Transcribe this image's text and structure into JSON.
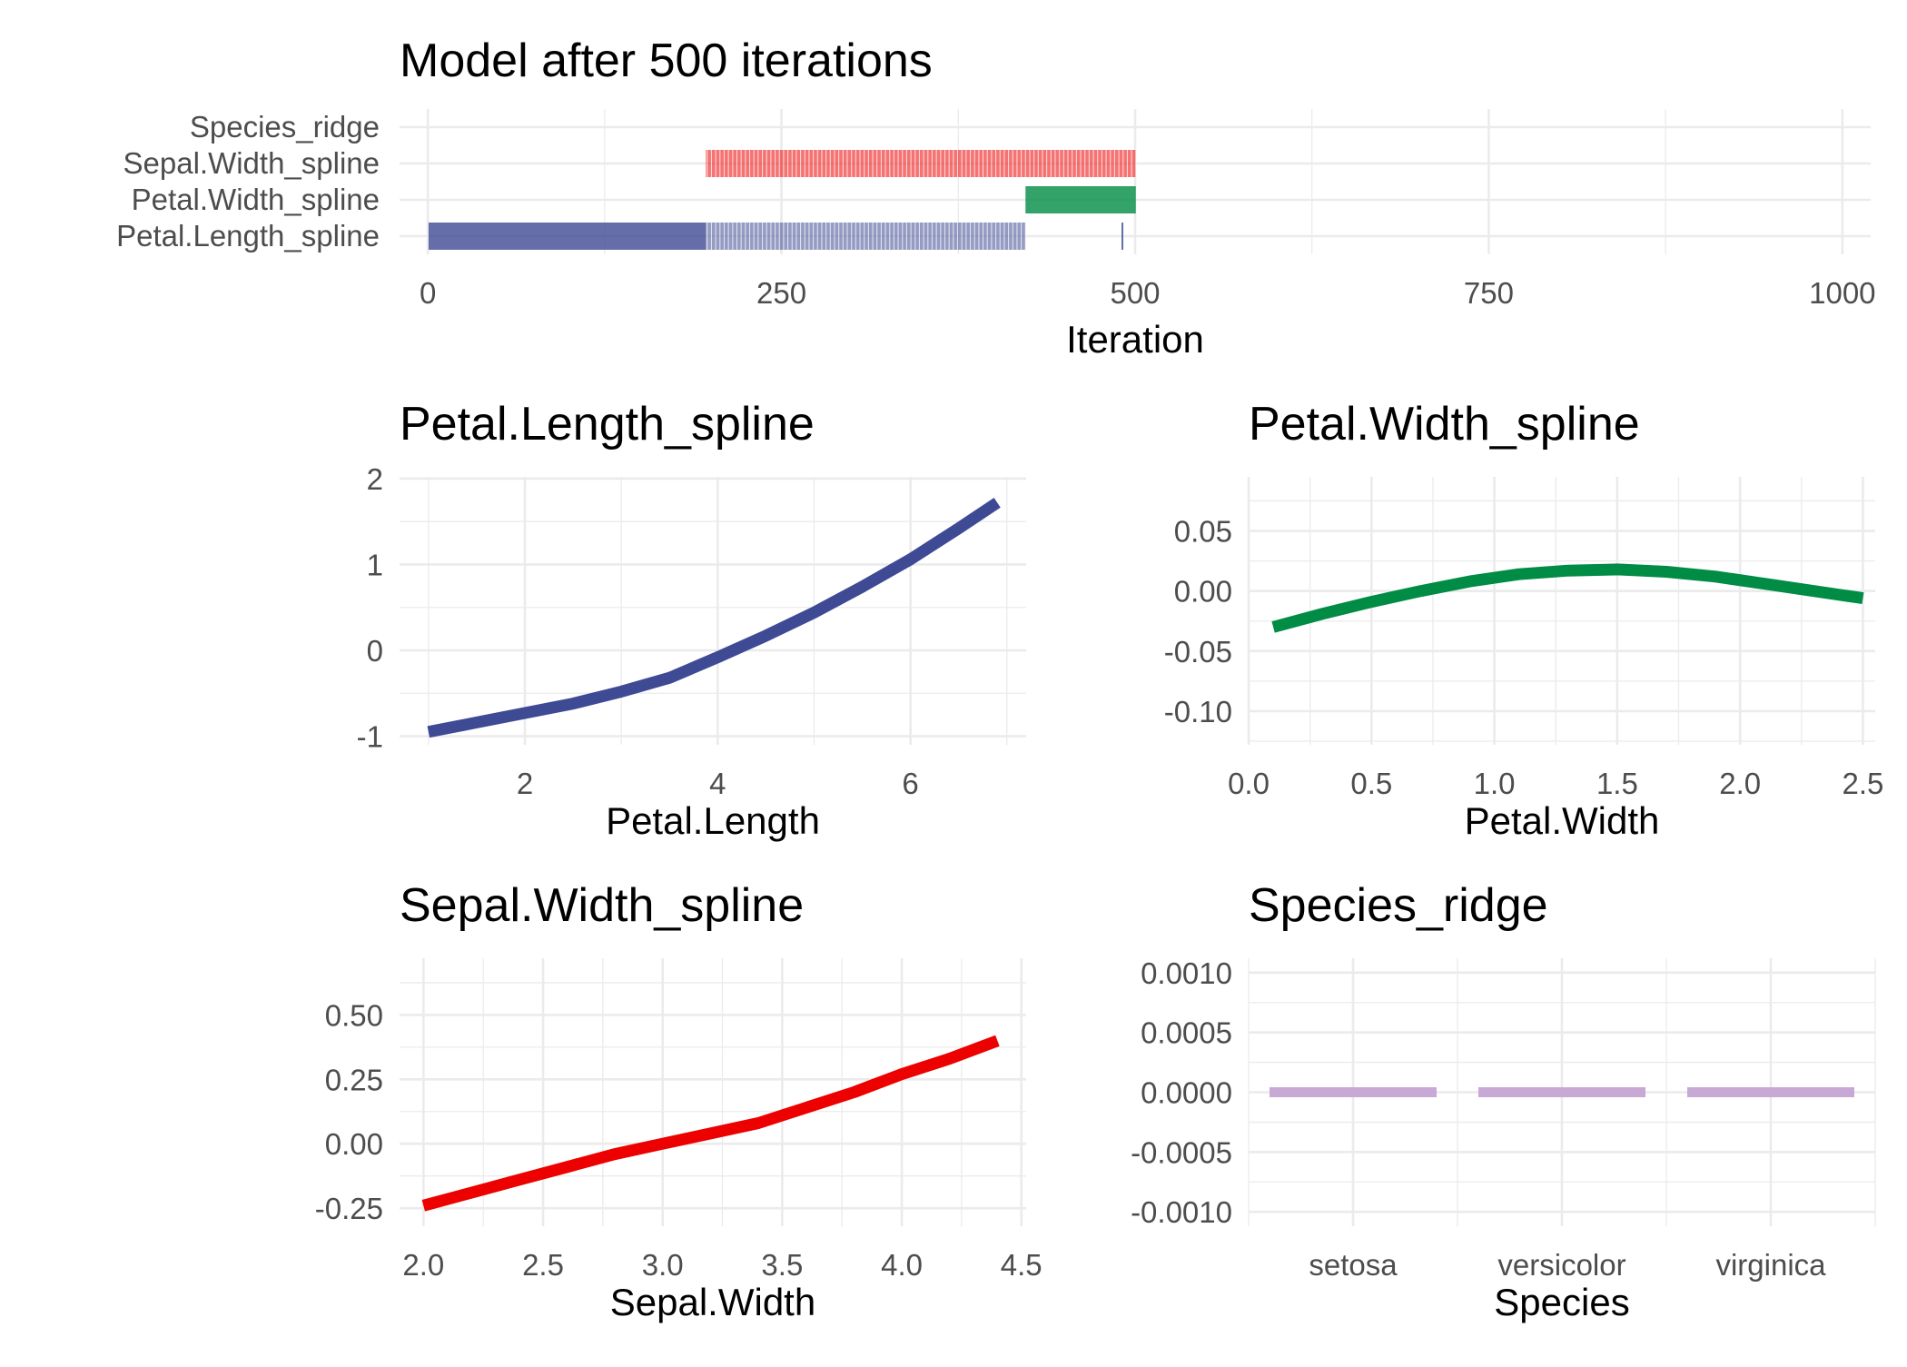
{
  "colors": {
    "Petal.Length_spline": "#3e4a94",
    "Petal.Width_spline": "#008c45",
    "Sepal.Width_spline": "#ec0000",
    "Species_ridge": "#c8a8d4"
  },
  "chart_data": [
    {
      "type": "trace",
      "title": "Model after 500 iterations",
      "xlabel": "Iteration",
      "ylabel": "",
      "xlim": [
        -20,
        1020
      ],
      "xticks": [
        0,
        250,
        500,
        750,
        1000
      ],
      "xtick_labels": [
        "0",
        "250",
        "500",
        "750",
        "1000"
      ],
      "categories": [
        "Species_ridge",
        "Sepal.Width_spline",
        "Petal.Width_spline",
        "Petal.Length_spline"
      ],
      "series": [
        {
          "name": "Petal.Length_spline",
          "segments": [
            [
              1,
              196,
              "dense"
            ],
            [
              197,
              422,
              "sparse"
            ],
            [
              491,
              491,
              "single"
            ]
          ]
        },
        {
          "name": "Petal.Width_spline",
          "segments": [
            [
              423,
              500,
              "dense"
            ]
          ]
        },
        {
          "name": "Sepal.Width_spline",
          "segments": [
            [
              197,
              500,
              "sparse"
            ]
          ]
        },
        {
          "name": "Species_ridge",
          "segments": []
        }
      ]
    },
    {
      "type": "line",
      "title": "Petal.Length_spline",
      "xlabel": "Petal.Length",
      "ylabel": "",
      "series_key": "Petal.Length_spline",
      "xlim": [
        0.7,
        7.2
      ],
      "ylim": [
        -1.1,
        2.02
      ],
      "xticks": [
        2,
        4,
        6
      ],
      "xtick_labels": [
        "2",
        "4",
        "6"
      ],
      "yticks": [
        -1,
        0,
        1,
        2
      ],
      "ytick_labels": [
        "-1",
        "0",
        "1",
        "2"
      ],
      "x": [
        1.0,
        1.5,
        2.0,
        2.5,
        3.0,
        3.5,
        4.0,
        4.5,
        5.0,
        5.5,
        6.0,
        6.5,
        6.9
      ],
      "y": [
        -0.95,
        -0.84,
        -0.73,
        -0.62,
        -0.48,
        -0.32,
        -0.08,
        0.17,
        0.44,
        0.74,
        1.06,
        1.42,
        1.72
      ]
    },
    {
      "type": "line",
      "title": "Petal.Width_spline",
      "xlabel": "Petal.Width",
      "ylabel": "",
      "series_key": "Petal.Width_spline",
      "xlim": [
        0.0,
        2.55
      ],
      "ylim": [
        -0.128,
        0.095
      ],
      "xticks": [
        0.0,
        0.5,
        1.0,
        1.5,
        2.0,
        2.5
      ],
      "xtick_labels": [
        "0.0",
        "0.5",
        "1.0",
        "1.5",
        "2.0",
        "2.5"
      ],
      "yticks": [
        -0.1,
        -0.05,
        0.0,
        0.05
      ],
      "ytick_labels": [
        "-0.10",
        "-0.05",
        "0.00",
        "0.05"
      ],
      "x": [
        0.1,
        0.3,
        0.5,
        0.7,
        0.9,
        1.1,
        1.3,
        1.5,
        1.7,
        1.9,
        2.1,
        2.3,
        2.5
      ],
      "y": [
        -0.03,
        -0.019,
        -0.009,
        0.0,
        0.008,
        0.014,
        0.017,
        0.018,
        0.016,
        0.012,
        0.006,
        0.0,
        -0.006
      ]
    },
    {
      "type": "line",
      "title": "Sepal.Width_spline",
      "xlabel": "Sepal.Width",
      "ylabel": "",
      "series_key": "Sepal.Width_spline",
      "xlim": [
        1.9,
        4.52
      ],
      "ylim": [
        -0.32,
        0.72
      ],
      "xticks": [
        2.0,
        2.5,
        3.0,
        3.5,
        4.0,
        4.5
      ],
      "xtick_labels": [
        "2.0",
        "2.5",
        "3.0",
        "3.5",
        "4.0",
        "4.5"
      ],
      "yticks": [
        -0.25,
        0.0,
        0.25,
        0.5
      ],
      "ytick_labels": [
        "-0.25",
        "0.00",
        "0.25",
        "0.50"
      ],
      "x": [
        2.0,
        2.2,
        2.4,
        2.6,
        2.8,
        3.0,
        3.2,
        3.4,
        3.6,
        3.8,
        4.0,
        4.2,
        4.4
      ],
      "y": [
        -0.24,
        -0.19,
        -0.14,
        -0.09,
        -0.04,
        0.0,
        0.04,
        0.08,
        0.14,
        0.2,
        0.27,
        0.33,
        0.4
      ]
    },
    {
      "type": "categorical-effect",
      "title": "Species_ridge",
      "xlabel": "Species",
      "ylabel": "",
      "series_key": "Species_ridge",
      "categories": [
        "setosa",
        "versicolor",
        "virginica"
      ],
      "values": [
        0.0,
        0.0,
        0.0
      ],
      "ylim": [
        -0.00112,
        0.00112
      ],
      "yticks": [
        -0.001,
        -0.0005,
        0.0,
        0.0005,
        0.001
      ],
      "ytick_labels": [
        "-0.0010",
        "-0.0005",
        "0.0000",
        "0.0005",
        "0.0010"
      ]
    }
  ]
}
